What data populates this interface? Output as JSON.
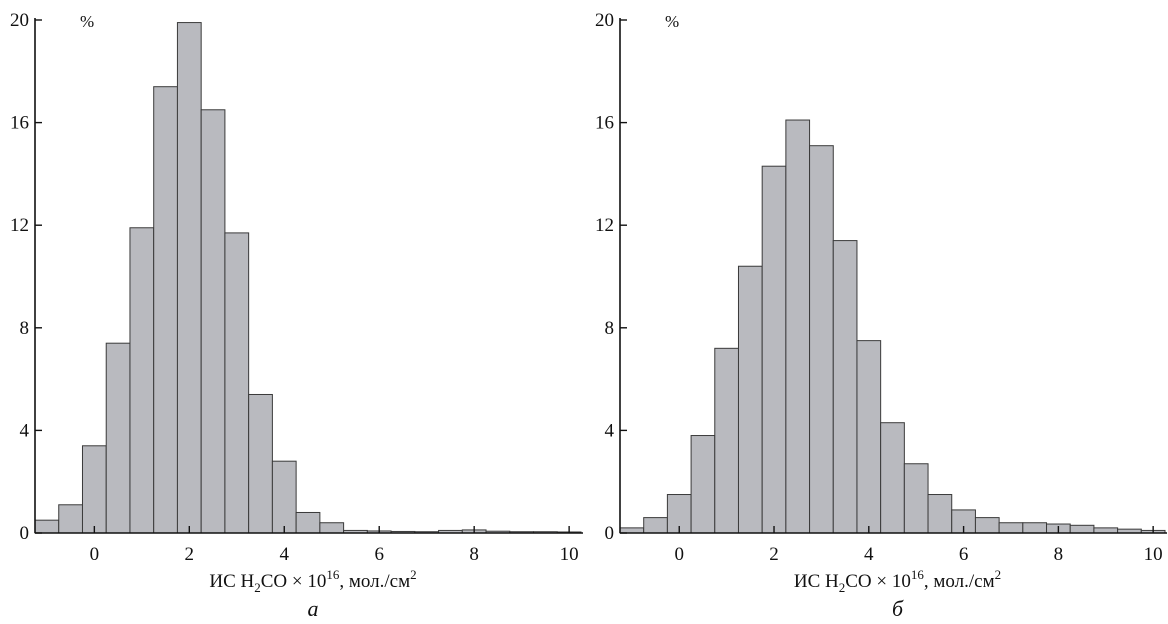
{
  "chart_data": [
    {
      "type": "bar",
      "panel_label": "а",
      "unit_label": "%",
      "xlabel": {
        "prefix": "ИС H",
        "sub": "2",
        "mid": "CO × 10",
        "sup": "16",
        "suffix": ", мол./см",
        "sup2": "2"
      },
      "xlim": [
        -1.25,
        10.25
      ],
      "ylim": [
        0,
        20
      ],
      "xticks": [
        0,
        2,
        4,
        6,
        8,
        10
      ],
      "yticks": [
        0,
        4,
        8,
        12,
        16,
        20
      ],
      "bin_width": 0.5,
      "bin_starts": [
        -1.25,
        -0.75,
        -0.25,
        0.25,
        0.75,
        1.25,
        1.75,
        2.25,
        2.75,
        3.25,
        3.75,
        4.25,
        4.75,
        5.25,
        5.75,
        6.25,
        6.75,
        7.25,
        7.75,
        8.25,
        8.75,
        9.25,
        9.75
      ],
      "values": [
        0.5,
        1.1,
        3.4,
        7.4,
        11.9,
        17.4,
        19.9,
        16.5,
        11.7,
        5.4,
        2.8,
        0.8,
        0.4,
        0.1,
        0.08,
        0.06,
        0.05,
        0.1,
        0.12,
        0.07,
        0.05,
        0.05,
        0.04
      ]
    },
    {
      "type": "bar",
      "panel_label": "б",
      "unit_label": "%",
      "xlabel": {
        "prefix": "ИС H",
        "sub": "2",
        "mid": "CO × 10",
        "sup": "16",
        "suffix": ", мол./см",
        "sup2": "2"
      },
      "xlim": [
        -1.25,
        10.25
      ],
      "ylim": [
        0,
        20
      ],
      "xticks": [
        0,
        2,
        4,
        6,
        8,
        10
      ],
      "yticks": [
        0,
        4,
        8,
        12,
        16,
        20
      ],
      "bin_width": 0.5,
      "bin_starts": [
        -1.25,
        -0.75,
        -0.25,
        0.25,
        0.75,
        1.25,
        1.75,
        2.25,
        2.75,
        3.25,
        3.75,
        4.25,
        4.75,
        5.25,
        5.75,
        6.25,
        6.75,
        7.25,
        7.75,
        8.25,
        8.75,
        9.25,
        9.75
      ],
      "values": [
        0.2,
        0.6,
        1.5,
        3.8,
        7.2,
        10.4,
        14.3,
        16.1,
        15.1,
        11.4,
        7.5,
        4.3,
        2.7,
        1.5,
        0.9,
        0.6,
        0.4,
        0.4,
        0.35,
        0.3,
        0.2,
        0.15,
        0.1
      ]
    }
  ]
}
